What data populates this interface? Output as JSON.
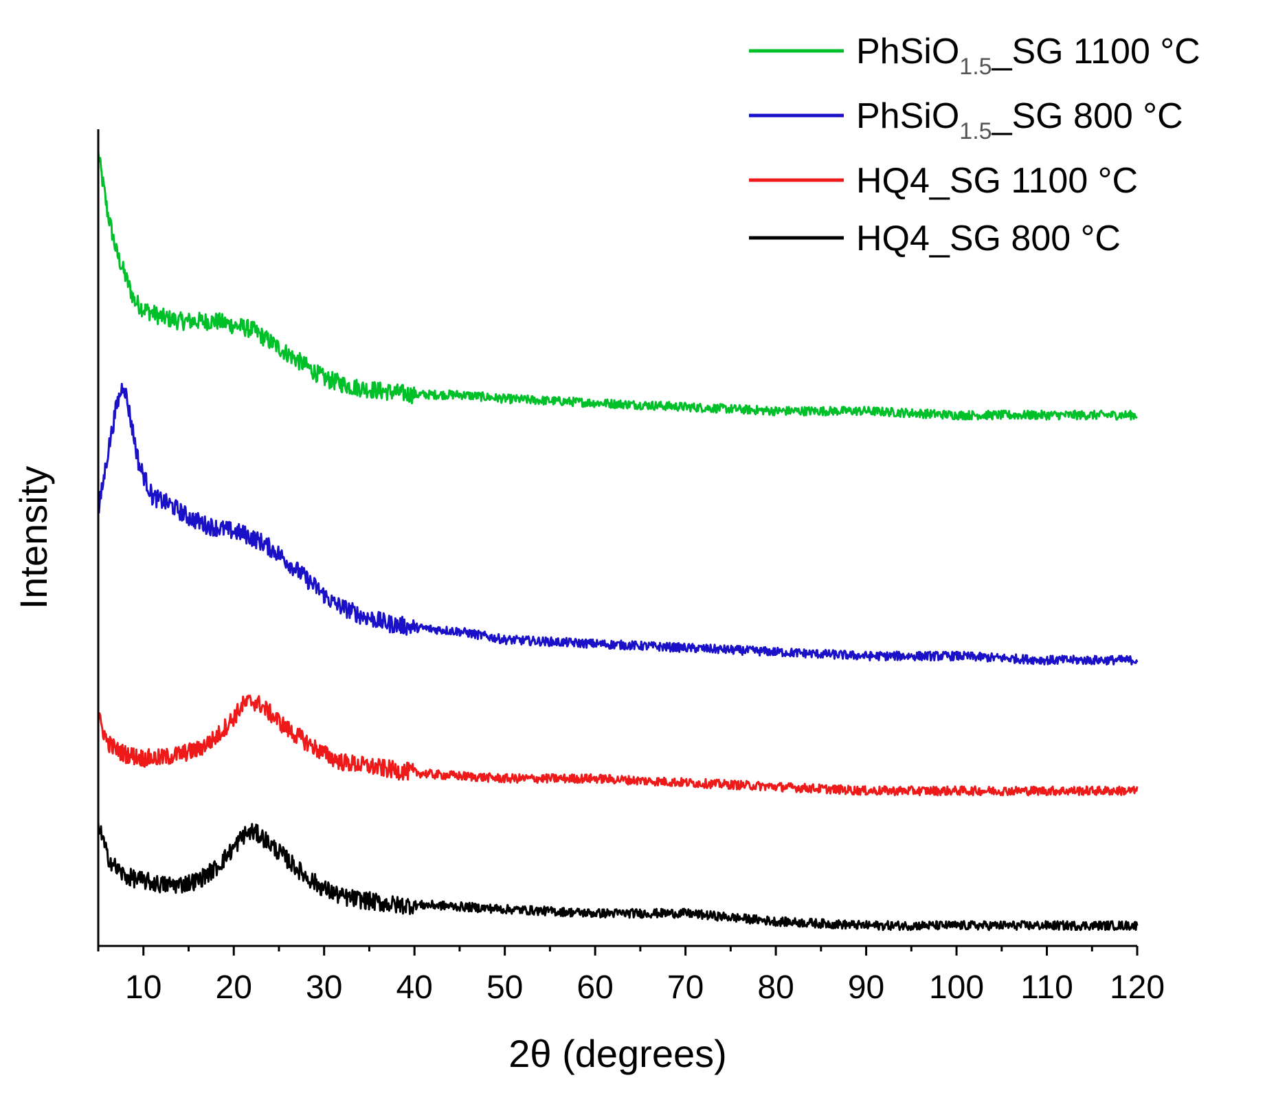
{
  "chart_data": {
    "type": "line",
    "title": "",
    "xlabel": "2θ (degrees)",
    "ylabel": "Intensity",
    "xlim": [
      5,
      120
    ],
    "ylim": [
      0,
      100
    ],
    "grid": false,
    "legend_position": "top-right",
    "x_ticks": [
      10,
      20,
      30,
      40,
      50,
      60,
      70,
      80,
      90,
      100,
      110,
      120
    ],
    "y_ticks_shown": false,
    "series": [
      {
        "name": "PhSiO1.5_SG 1100 °C",
        "label_main": "PhSiO",
        "label_sub": "1.5",
        "label_rest": "_SG 1100 °C",
        "color": "#00c02a",
        "x": [
          5,
          6,
          7,
          8,
          9,
          10,
          12,
          14,
          16,
          18,
          20,
          22,
          24,
          26,
          28,
          30,
          33,
          36,
          40,
          45,
          50,
          60,
          70,
          80,
          90,
          100,
          110,
          120
        ],
        "y": [
          97,
          90,
          85,
          82,
          79,
          78,
          77,
          76.5,
          76.5,
          76.5,
          76,
          75.5,
          74,
          72.5,
          71,
          69.5,
          68.5,
          68,
          67.5,
          67.5,
          67,
          66.5,
          66,
          65.5,
          65.5,
          65,
          65,
          65
        ]
      },
      {
        "name": "PhSiO1.5_SG 800 °C",
        "label_main": "PhSiO",
        "label_sub": "1.5",
        "label_rest": "_SG 800 °C",
        "color": "#1a10c8",
        "x": [
          5,
          6,
          7,
          7.8,
          8.5,
          9.5,
          11,
          13,
          15,
          17,
          19,
          21,
          23,
          25,
          27,
          29,
          31,
          34,
          37,
          40,
          45,
          50,
          60,
          70,
          80,
          90,
          100,
          110,
          120
        ],
        "y": [
          53,
          60,
          66,
          69,
          65,
          59,
          55,
          54,
          52.5,
          51.5,
          51,
          50.5,
          49.5,
          48,
          46,
          44,
          42,
          40.5,
          39.5,
          39,
          38.5,
          37.5,
          37,
          36.5,
          36,
          35.5,
          35.5,
          35,
          35
        ]
      },
      {
        "name": "HQ4_SG 1100 °C",
        "label_main": "HQ4_SG 1100 °C",
        "label_sub": "",
        "label_rest": "",
        "color": "#ee1a1a",
        "x": [
          5,
          6,
          7,
          8,
          10,
          12,
          14,
          16,
          18,
          20,
          21,
          22,
          23,
          24,
          26,
          28,
          30,
          32,
          35,
          38,
          42,
          50,
          60,
          70,
          80,
          90,
          100,
          110,
          120
        ],
        "y": [
          28,
          25,
          24,
          23.5,
          23,
          23,
          23.5,
          24,
          25.5,
          28,
          29.5,
          30,
          29.5,
          28.5,
          26.5,
          25,
          23.5,
          22.5,
          22,
          21.5,
          21,
          20.5,
          20.5,
          20,
          19.5,
          19,
          19,
          19,
          19
        ]
      },
      {
        "name": "HQ4_SG 800 °C",
        "label_main": "HQ4_SG 800 °C",
        "label_sub": "",
        "label_rest": "",
        "color": "#000000",
        "x": [
          5,
          6,
          7,
          8,
          10,
          12,
          14,
          16,
          18,
          20,
          21,
          22,
          23,
          24,
          26,
          28,
          30,
          32,
          35,
          38,
          42,
          50,
          60,
          70,
          80,
          90,
          100,
          110,
          120
        ],
        "y": [
          15,
          11,
          9.5,
          8.5,
          8,
          7.5,
          7.5,
          8,
          9.5,
          12,
          13.5,
          14,
          13.5,
          12.5,
          10.5,
          8.5,
          7,
          6,
          5.5,
          5,
          5,
          4.5,
          4,
          4,
          3,
          2.5,
          2.5,
          2.5,
          2.5
        ]
      }
    ]
  }
}
